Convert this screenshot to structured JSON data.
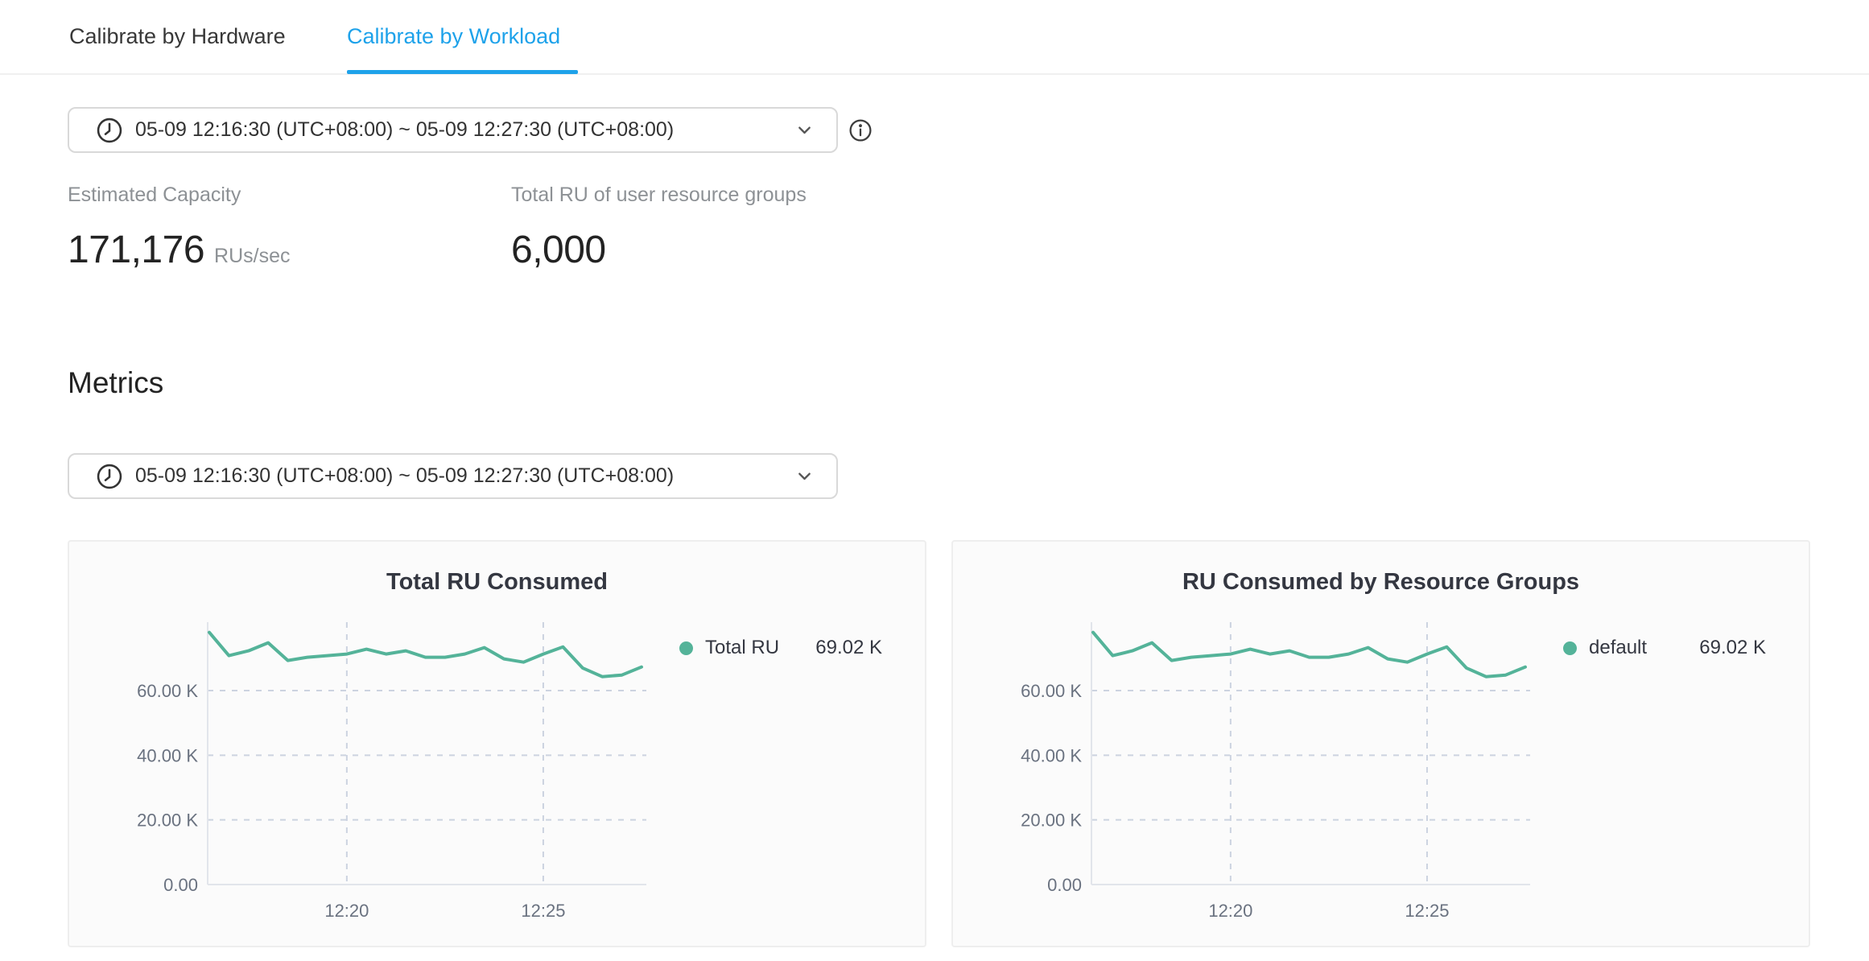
{
  "tabs": [
    {
      "label": "Calibrate by Hardware",
      "active": false
    },
    {
      "label": "Calibrate by Workload",
      "active": true
    }
  ],
  "time_range_picker": {
    "value": "05-09 12:16:30 (UTC+08:00) ~ 05-09 12:27:30 (UTC+08:00)"
  },
  "stats": {
    "estimated_capacity": {
      "label": "Estimated Capacity",
      "value": "171,176",
      "unit": "RUs/sec"
    },
    "total_ru": {
      "label": "Total RU of user resource groups",
      "value": "6,000"
    }
  },
  "sections": {
    "metrics_title": "Metrics"
  },
  "icons": {
    "clock": "clock-icon",
    "chevron": "chevron-down-icon",
    "info": "info-circle-icon"
  },
  "colors": {
    "accent_blue": "#1ea2ea",
    "series_green": "#54b399",
    "grid_dash": "#ccd3e0",
    "axis_line": "#e2e5eb",
    "axis_label": "#6a7280",
    "chart_text": "#343741"
  },
  "chart_data": [
    {
      "type": "line",
      "title": "Total RU Consumed",
      "legend": {
        "label": "Total RU",
        "value": "69.02 K",
        "position": "right"
      },
      "series": [
        {
          "name": "Total RU",
          "color": "#54b399",
          "values": [
            78000,
            70800,
            72300,
            74800,
            69300,
            70300,
            70800,
            71300,
            72800,
            71300,
            72300,
            70300,
            70300,
            71300,
            73300,
            69800,
            68800,
            71300,
            73500,
            67000,
            64300,
            64800,
            67300
          ]
        }
      ],
      "x_start": "12:16:30",
      "x_end": "12:27:30",
      "x_interval_sec": 30,
      "x_span_min": 11,
      "x_ticks": [
        {
          "label": "12:20",
          "t_min": 3.5
        },
        {
          "label": "12:25",
          "t_min": 8.5
        }
      ],
      "y_ticks": [
        {
          "label": "0.00",
          "value": 0
        },
        {
          "label": "20.00 K",
          "value": 20000
        },
        {
          "label": "40.00 K",
          "value": 40000
        },
        {
          "label": "60.00 K",
          "value": 60000
        }
      ],
      "ylim": [
        0,
        81500
      ],
      "grid": "dashed"
    },
    {
      "type": "line",
      "title": "RU Consumed by Resource Groups",
      "legend": {
        "label": "default",
        "value": "69.02 K",
        "position": "right"
      },
      "series": [
        {
          "name": "default",
          "color": "#54b399",
          "values": [
            78000,
            70800,
            72300,
            74800,
            69300,
            70300,
            70800,
            71300,
            72800,
            71300,
            72300,
            70300,
            70300,
            71300,
            73300,
            69800,
            68800,
            71300,
            73500,
            67000,
            64300,
            64800,
            67300
          ]
        }
      ],
      "x_start": "12:16:30",
      "x_end": "12:27:30",
      "x_interval_sec": 30,
      "x_span_min": 11,
      "x_ticks": [
        {
          "label": "12:20",
          "t_min": 3.5
        },
        {
          "label": "12:25",
          "t_min": 8.5
        }
      ],
      "y_ticks": [
        {
          "label": "0.00",
          "value": 0
        },
        {
          "label": "20.00 K",
          "value": 20000
        },
        {
          "label": "40.00 K",
          "value": 40000
        },
        {
          "label": "60.00 K",
          "value": 60000
        }
      ],
      "ylim": [
        0,
        81500
      ],
      "grid": "dashed"
    }
  ]
}
